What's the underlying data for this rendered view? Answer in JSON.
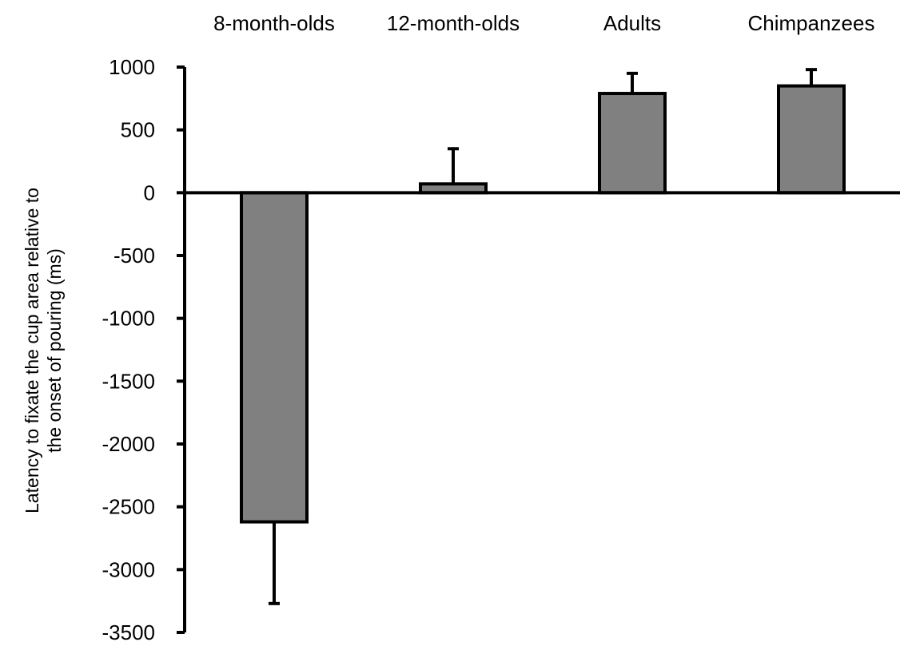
{
  "chart_data": {
    "type": "bar",
    "categories": [
      "8-month-olds",
      "12-month-olds",
      "Adults",
      "Chimpanzees"
    ],
    "values": [
      -2620,
      70,
      790,
      850
    ],
    "errors": [
      650,
      280,
      160,
      130
    ],
    "ylabel_lines": [
      "Latency to fixate the cup area relative to",
      "the onset of pouring (ms)"
    ],
    "ylim": [
      -3500,
      1000
    ],
    "yticks": [
      1000,
      500,
      0,
      -500,
      -1000,
      -1500,
      -2000,
      -2500,
      -3000,
      -3500
    ],
    "legend": "none",
    "grid": false,
    "colors": {
      "bar_fill": "#808080",
      "stroke": "#000000"
    }
  }
}
